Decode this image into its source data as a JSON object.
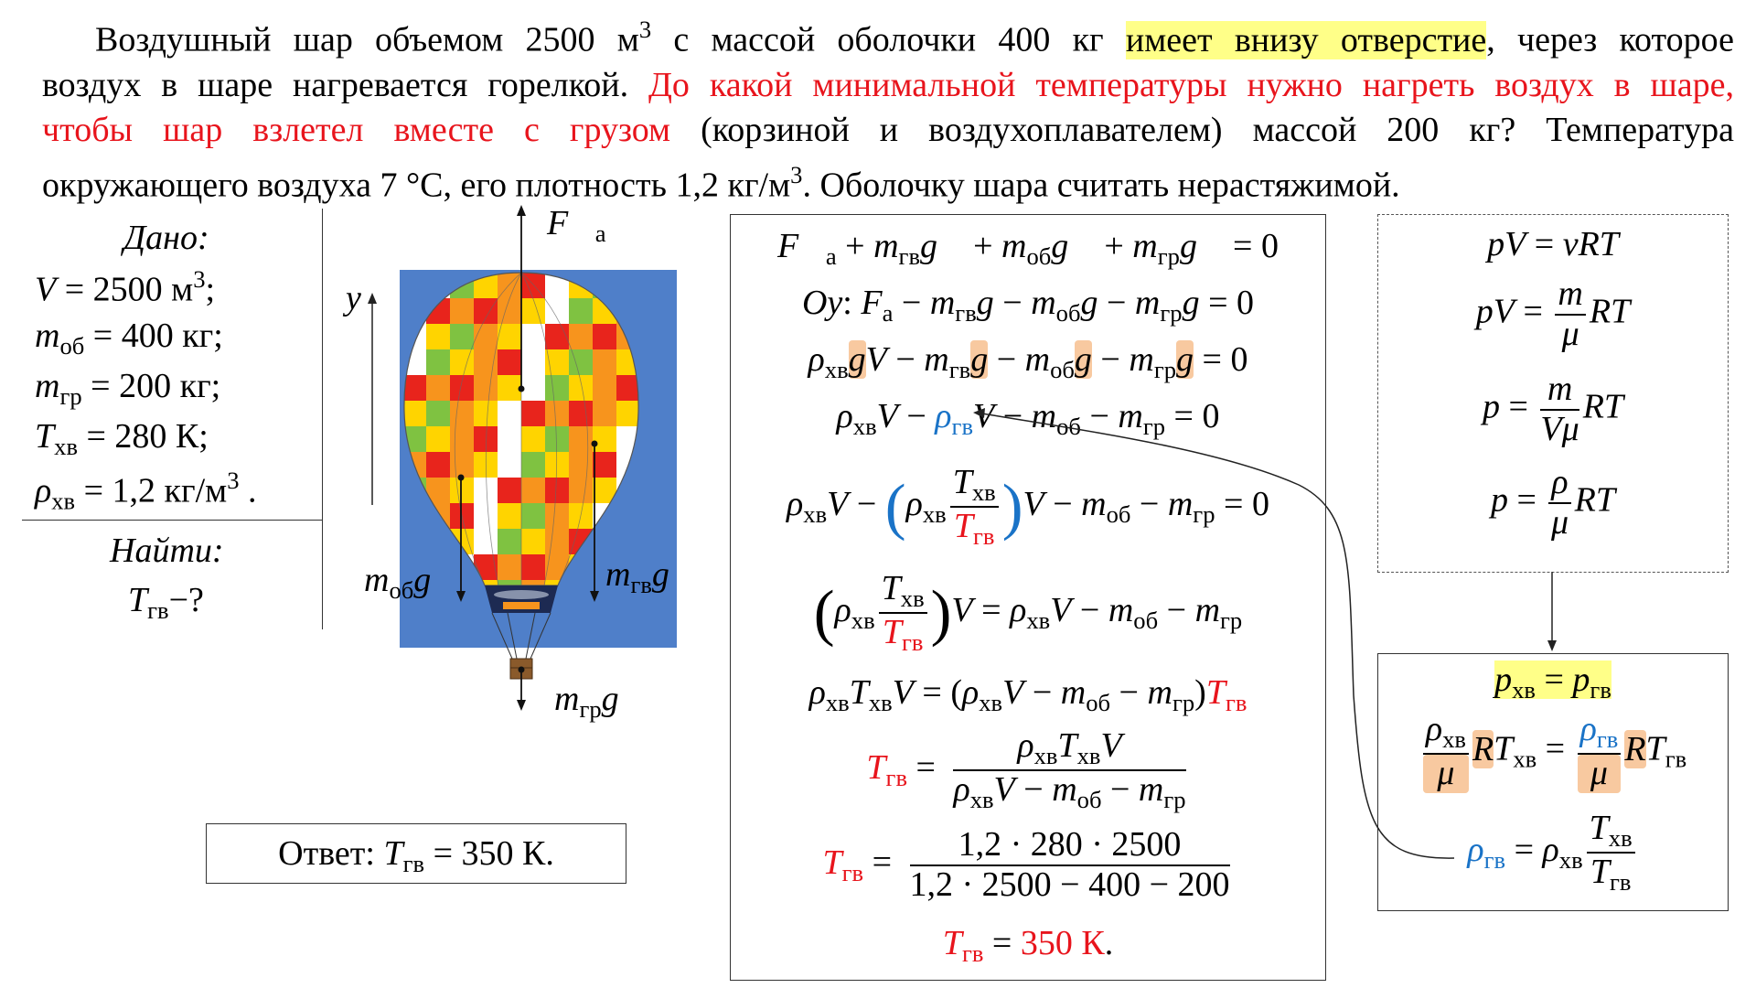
{
  "problem": {
    "line1_a": "Воздушный шар объемом 2500 м",
    "line1_sup": "3",
    "line1_b": " с массой оболочки 400 кг ",
    "line1_hl": "имеет внизу отверстие",
    "line1_c": ", через которое",
    "line2_a": "воздух в шаре нагревается горелкой. ",
    "line2_red": "До какой минимальной температуры нужно нагреть воздух в шаре,",
    "line3_red": "чтобы шар взлетел вместе с грузом",
    "line3_b": " (корзиной и воздухоплавателем) массой 200 кг? Температура",
    "line4_a": "окружающего воздуха 7 °C, его плотность 1,2 кг/м",
    "line4_sup": "3",
    "line4_b": ". Оболочку шара считать нерастяжимой."
  },
  "given": {
    "title": "Дано:",
    "find_title": "Найти:"
  },
  "diagram": {
    "axis_label": "y",
    "balloon_colors": [
      "#e8241c",
      "#f7941d",
      "#ffd400",
      "#ffffff",
      "#7fc241",
      "#2a5db0"
    ],
    "sky_color": "#4f7fc9"
  },
  "answer": {
    "label": "Ответ:"
  },
  "solution": {
    "numerator": "1,2 · 280 · 2500",
    "denominator": "1,2 · 2500 − 400 − 200",
    "result": "350 К"
  },
  "colors": {
    "red": "#e8141c",
    "blue": "#1a73c7",
    "highlight_yellow": "#ffff88",
    "highlight_orange": "#f8c9a0"
  }
}
